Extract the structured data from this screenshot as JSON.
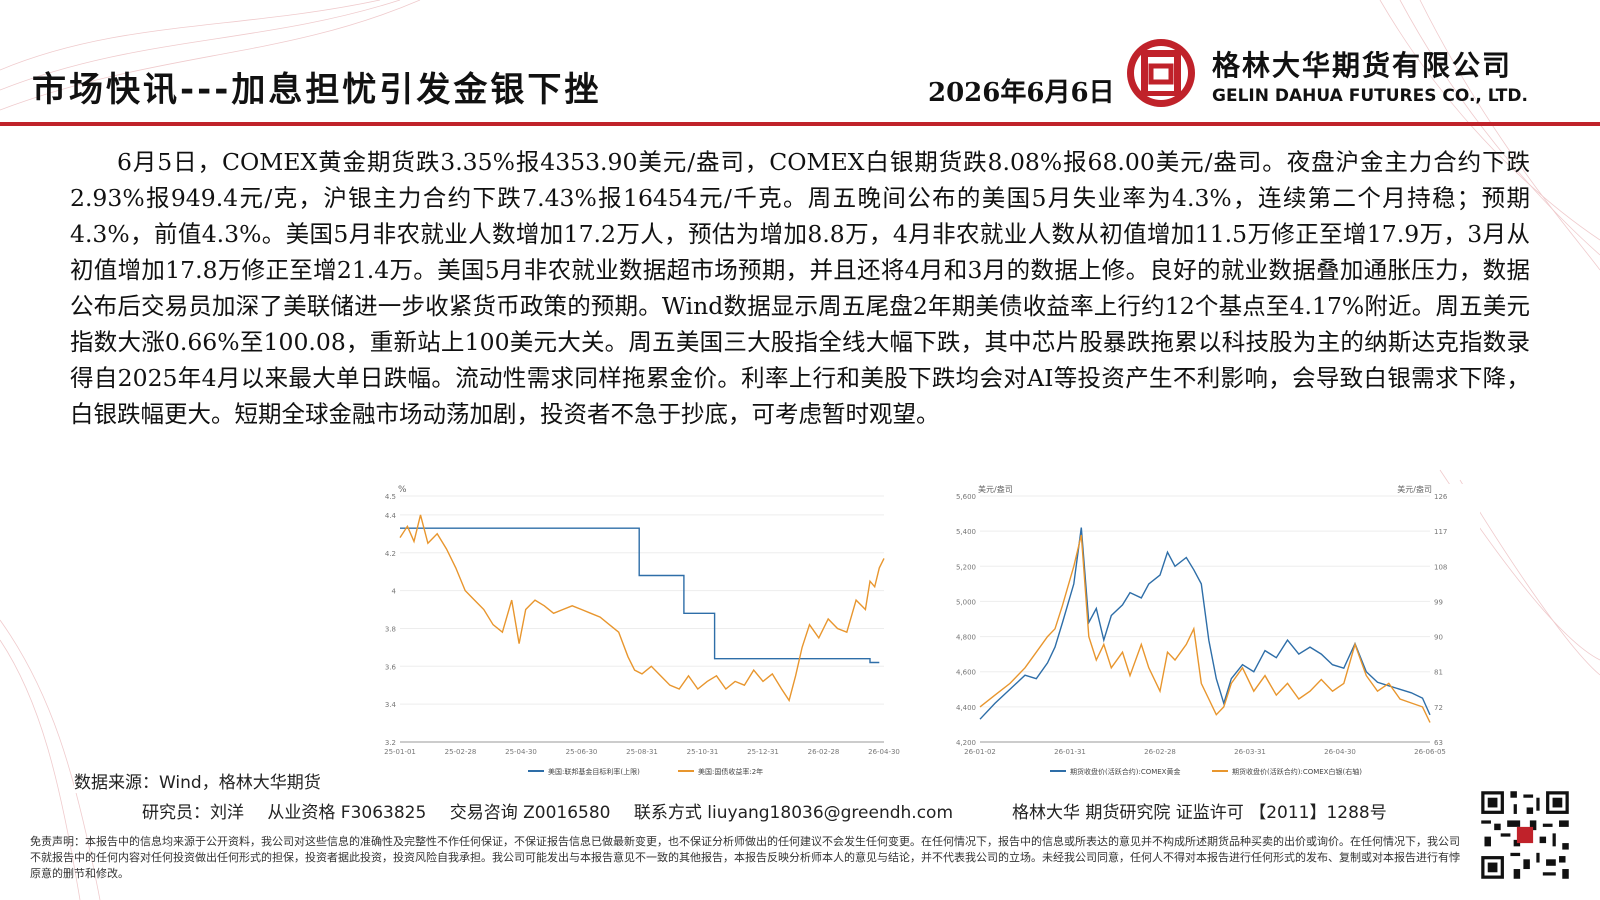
{
  "header": {
    "title": "市场快讯---加息担忧引发金银下挫",
    "date": "2026年6月6日",
    "company_cn": "格林大华期货有限公司",
    "company_en": "GELIN DAHUA FUTURES CO., LTD."
  },
  "article": {
    "paragraph": "6月5日，COMEX黄金期货跌3.35%报4353.90美元/盎司，COMEX白银期货跌8.08%报68.00美元/盎司。夜盘沪金主力合约下跌2.93%报949.4元/克，沪银主力合约下跌7.43%报16454元/千克。周五晚间公布的美国5月失业率为4.3%，连续第二个月持稳；预期4.3%，前值4.3%。美国5月非农就业人数增加17.2万人，预估为增加8.8万，4月非农就业人数从初值增加11.5万修正至增17.9万，3月从初值增加17.8万修正至增21.4万。美国5月非农就业数据超市场预期，并且还将4月和3月的数据上修。良好的就业数据叠加通胀压力，数据公布后交易员加深了美联储进一步收紧货币政策的预期。Wind数据显示周五尾盘2年期美债收益率上行约12个基点至4.17%附近。周五美元指数大涨0.66%至100.08，重新站上100美元大关。周五美国三大股指全线大幅下跌，其中芯片股暴跌拖累以科技股为主的纳斯达克指数录得自2025年4月以来最大单日跌幅。流动性需求同样拖累金价。利率上行和美股下跌均会对AI等投资产生不利影响，会导致白银需求下降，白银跌幅更大。短期全球金融市场动荡加剧，投资者不急于抄底，可考虑暂时观望。"
  },
  "footer": {
    "source": "数据来源：Wind，格林大华期货",
    "researcher": "研究员：刘洋",
    "qualification": "从业资格 F3063825",
    "consulting": "交易咨询 Z0016580",
    "contact": "联系方式 liuyang18036@greendh.com",
    "org": "格林大华 期货研究院  证监许可 【2011】1288号",
    "disclaimer": "免责声明：本报告中的信息均来源于公开资料，我公司对这些信息的准确性及完整性不作任何保证，不保证报告信息已做最新变更，也不保证分析师做出的任何建议不会发生任何变更。在任何情况下，报告中的信息或所表达的意见并不构成所述期货品种买卖的出价或询价。在任何情况下，我公司不就报告中的任何内容对任何投资做出任何形式的担保，投资者据此投资，投资风险自我承担。我公司可能发出与本报告意见不一致的其他报告，本报告反映分析师本人的意见与结论，并不代表我公司的立场。未经我公司同意，任何人不得对本报告进行任何形式的发布、复制或对本报告进行有悖原意的删节和修改。"
  },
  "colors": {
    "brand_red": "#c0222a",
    "series_blue": "#2e6ea8",
    "series_orange": "#e8962e"
  },
  "chart_data": [
    {
      "type": "line",
      "ylabel": "%",
      "ylim": [
        3.2,
        4.5
      ],
      "yticks": [
        "4.5",
        "4.4",
        "4.2",
        "4",
        "3.8",
        "3.6",
        "3.4",
        "3.2"
      ],
      "xticks": [
        "25-01-01",
        "25-02-28",
        "25-04-30",
        "25-06-30",
        "25-08-31",
        "25-10-31",
        "25-12-31",
        "26-02-28",
        "26-04-30"
      ],
      "legend": [
        "美国:联邦基金目标利率(上限)",
        "美国:国债收益率:2年"
      ],
      "x_range": [
        0,
        520
      ],
      "series": [
        {
          "name": "美国:联邦基金目标利率(上限)",
          "color": "#2e6ea8",
          "points": [
            [
              0,
              4.33
            ],
            [
              257,
              4.33
            ],
            [
              257,
              4.08
            ],
            [
              305,
              4.08
            ],
            [
              305,
              3.88
            ],
            [
              338,
              3.88
            ],
            [
              338,
              3.64
            ],
            [
              505,
              3.64
            ],
            [
              505,
              3.62
            ],
            [
              515,
              3.62
            ]
          ]
        },
        {
          "name": "美国:国债收益率:2年",
          "color": "#e8962e",
          "points": [
            [
              0,
              4.28
            ],
            [
              8,
              4.34
            ],
            [
              15,
              4.26
            ],
            [
              22,
              4.4
            ],
            [
              30,
              4.25
            ],
            [
              40,
              4.3
            ],
            [
              50,
              4.22
            ],
            [
              60,
              4.12
            ],
            [
              70,
              4.0
            ],
            [
              80,
              3.95
            ],
            [
              90,
              3.9
            ],
            [
              100,
              3.82
            ],
            [
              110,
              3.78
            ],
            [
              120,
              3.95
            ],
            [
              128,
              3.72
            ],
            [
              135,
              3.9
            ],
            [
              145,
              3.95
            ],
            [
              155,
              3.92
            ],
            [
              165,
              3.88
            ],
            [
              175,
              3.9
            ],
            [
              185,
              3.92
            ],
            [
              195,
              3.9
            ],
            [
              205,
              3.88
            ],
            [
              215,
              3.86
            ],
            [
              225,
              3.82
            ],
            [
              235,
              3.78
            ],
            [
              245,
              3.65
            ],
            [
              252,
              3.58
            ],
            [
              260,
              3.56
            ],
            [
              270,
              3.6
            ],
            [
              280,
              3.55
            ],
            [
              290,
              3.5
            ],
            [
              300,
              3.48
            ],
            [
              310,
              3.55
            ],
            [
              320,
              3.48
            ],
            [
              330,
              3.52
            ],
            [
              340,
              3.55
            ],
            [
              350,
              3.48
            ],
            [
              360,
              3.52
            ],
            [
              370,
              3.5
            ],
            [
              380,
              3.58
            ],
            [
              390,
              3.52
            ],
            [
              400,
              3.56
            ],
            [
              410,
              3.48
            ],
            [
              418,
              3.42
            ],
            [
              425,
              3.55
            ],
            [
              432,
              3.7
            ],
            [
              440,
              3.82
            ],
            [
              450,
              3.75
            ],
            [
              460,
              3.85
            ],
            [
              470,
              3.8
            ],
            [
              480,
              3.78
            ],
            [
              490,
              3.95
            ],
            [
              500,
              3.9
            ],
            [
              505,
              4.05
            ],
            [
              510,
              4.02
            ],
            [
              515,
              4.12
            ],
            [
              520,
              4.17
            ]
          ]
        }
      ]
    },
    {
      "type": "line",
      "ylabel_left": "美元/盎司",
      "ylabel_right": "美元/盎司",
      "ylim_left": [
        4200,
        5600
      ],
      "ylim_right": [
        63,
        126
      ],
      "yticks_left": [
        "5,600",
        "5,400",
        "5,200",
        "5,000",
        "4,800",
        "4,600",
        "4,400",
        "4,200"
      ],
      "yticks_right": [
        "126",
        "117",
        "108",
        "99",
        "90",
        "81",
        "72",
        "63"
      ],
      "xticks": [
        "26-01-02",
        "26-01-31",
        "26-02-28",
        "26-03-31",
        "26-04-30",
        "26-06-05"
      ],
      "legend": [
        "期货收盘价(活跃合约):COMEX黄金",
        "期货收盘价(活跃合约):COMEX白银(右轴)"
      ],
      "x_range": [
        0,
        120
      ],
      "series": [
        {
          "name": "期货收盘价(活跃合约):COMEX黄金",
          "color": "#2e6ea8",
          "axis": "left",
          "points": [
            [
              0,
              4330
            ],
            [
              4,
              4420
            ],
            [
              8,
              4500
            ],
            [
              12,
              4580
            ],
            [
              15,
              4560
            ],
            [
              18,
              4650
            ],
            [
              20,
              4740
            ],
            [
              22,
              4880
            ],
            [
              25,
              5100
            ],
            [
              27,
              5420
            ],
            [
              29,
              4880
            ],
            [
              31,
              4960
            ],
            [
              33,
              4780
            ],
            [
              35,
              4920
            ],
            [
              38,
              4980
            ],
            [
              40,
              5050
            ],
            [
              43,
              5020
            ],
            [
              45,
              5100
            ],
            [
              48,
              5150
            ],
            [
              50,
              5280
            ],
            [
              52,
              5200
            ],
            [
              55,
              5250
            ],
            [
              57,
              5180
            ],
            [
              59,
              5100
            ],
            [
              61,
              4780
            ],
            [
              63,
              4560
            ],
            [
              65,
              4420
            ],
            [
              67,
              4560
            ],
            [
              70,
              4640
            ],
            [
              73,
              4600
            ],
            [
              76,
              4720
            ],
            [
              79,
              4680
            ],
            [
              82,
              4780
            ],
            [
              85,
              4700
            ],
            [
              88,
              4740
            ],
            [
              91,
              4700
            ],
            [
              94,
              4640
            ],
            [
              97,
              4620
            ],
            [
              100,
              4760
            ],
            [
              103,
              4600
            ],
            [
              106,
              4540
            ],
            [
              109,
              4520
            ],
            [
              112,
              4500
            ],
            [
              115,
              4480
            ],
            [
              118,
              4450
            ],
            [
              120,
              4354
            ]
          ]
        },
        {
          "name": "期货收盘价(活跃合约):COMEX白银(右轴)",
          "color": "#e8962e",
          "axis": "right",
          "points": [
            [
              0,
              72
            ],
            [
              4,
              75
            ],
            [
              8,
              78
            ],
            [
              12,
              82
            ],
            [
              15,
              86
            ],
            [
              18,
              90
            ],
            [
              20,
              92
            ],
            [
              22,
              98
            ],
            [
              25,
              108
            ],
            [
              27,
              116
            ],
            [
              29,
              90
            ],
            [
              31,
              84
            ],
            [
              33,
              88
            ],
            [
              35,
              82
            ],
            [
              38,
              86
            ],
            [
              40,
              80
            ],
            [
              43,
              88
            ],
            [
              45,
              82
            ],
            [
              48,
              76
            ],
            [
              50,
              86
            ],
            [
              52,
              84
            ],
            [
              55,
              88
            ],
            [
              57,
              92
            ],
            [
              59,
              78
            ],
            [
              61,
              74
            ],
            [
              63,
              70
            ],
            [
              65,
              72
            ],
            [
              67,
              78
            ],
            [
              70,
              82
            ],
            [
              73,
              76
            ],
            [
              76,
              80
            ],
            [
              79,
              75
            ],
            [
              82,
              78
            ],
            [
              85,
              74
            ],
            [
              88,
              76
            ],
            [
              91,
              79
            ],
            [
              94,
              76
            ],
            [
              97,
              78
            ],
            [
              100,
              88
            ],
            [
              103,
              80
            ],
            [
              106,
              76
            ],
            [
              109,
              78
            ],
            [
              112,
              74
            ],
            [
              115,
              73
            ],
            [
              118,
              72
            ],
            [
              120,
              68
            ]
          ]
        }
      ]
    }
  ]
}
